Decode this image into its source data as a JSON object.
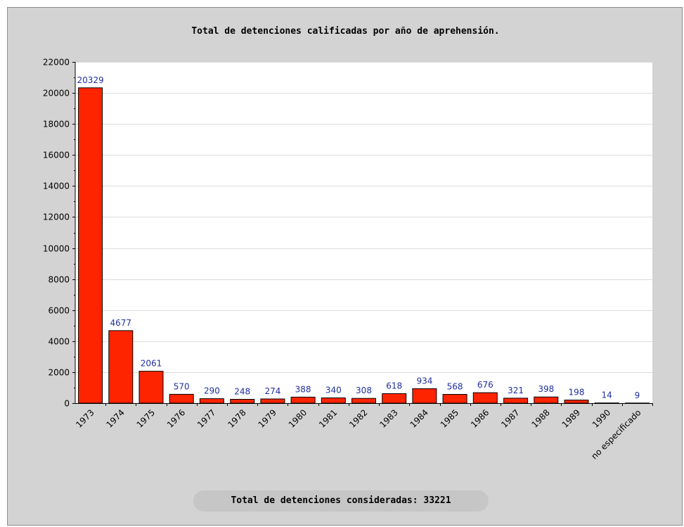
{
  "chart_data": {
    "type": "bar",
    "title": "Total de detenciones calificadas por año de aprehensión.",
    "categories": [
      "1973",
      "1974",
      "1975",
      "1976",
      "1977",
      "1978",
      "1979",
      "1980",
      "1981",
      "1982",
      "1983",
      "1984",
      "1985",
      "1986",
      "1987",
      "1988",
      "1989",
      "1990",
      "no especificado"
    ],
    "values": [
      20329,
      4677,
      2061,
      570,
      290,
      248,
      274,
      388,
      340,
      308,
      618,
      934,
      568,
      676,
      321,
      398,
      198,
      14,
      9
    ],
    "data_labels": [
      "20329",
      "4677",
      "2061",
      "570",
      "290",
      "248",
      "274",
      "388",
      "340",
      "308",
      "618",
      "934",
      "568",
      "676",
      "321",
      "398",
      "198",
      "14",
      "9"
    ],
    "ylim": [
      0,
      22000
    ],
    "yticks": [
      "0",
      "2000",
      "4000",
      "6000",
      "8000",
      "10000",
      "12000",
      "14000",
      "16000",
      "18000",
      "20000",
      "22000"
    ],
    "grid": true,
    "colors": {
      "bar": "#ff2400",
      "bar_border": "#000000",
      "data_label": "#1f2fa0",
      "plot_bg": "#ffffff",
      "page_bg": "#d3d3d3",
      "grid": "#dcdcdc"
    }
  },
  "footer": {
    "text": "Total de detenciones consideradas: 33221"
  }
}
